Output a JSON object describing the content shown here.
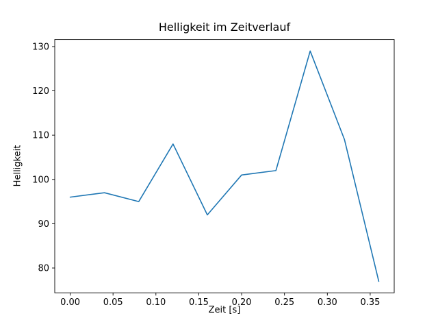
{
  "chart_data": {
    "type": "line",
    "title": "Helligkeit im Zeitverlauf",
    "xlabel": "Zeit [s]",
    "ylabel": "Helligkeit",
    "x": [
      0.0,
      0.04,
      0.08,
      0.12,
      0.16,
      0.2,
      0.24,
      0.28,
      0.32,
      0.36
    ],
    "values": [
      96,
      97,
      95,
      108,
      92,
      101,
      102,
      129,
      109,
      77
    ],
    "x_ticks": [
      0.0,
      0.05,
      0.1,
      0.15,
      0.2,
      0.25,
      0.3,
      0.35
    ],
    "y_ticks": [
      80,
      90,
      100,
      110,
      120,
      130
    ],
    "xlim": [
      -0.018,
      0.378
    ],
    "ylim": [
      74.4,
      131.6
    ],
    "line_color": "#1f77b4",
    "axis_color": "#000000",
    "background_color": "#ffffff",
    "grid": false,
    "legend": "none"
  }
}
